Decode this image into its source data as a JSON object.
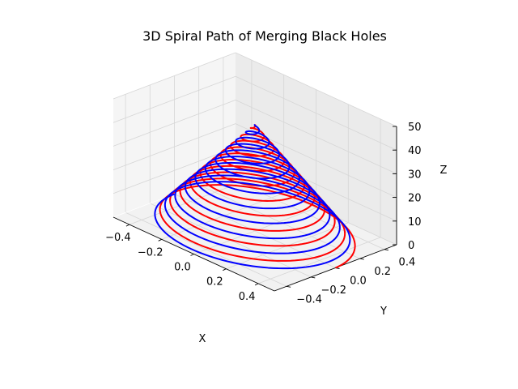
{
  "chart_data": {
    "type": "line3d",
    "title": "3D Spiral Path of Merging Black Holes",
    "xlabel": "X",
    "ylabel": "Y",
    "zlabel": "Z",
    "xlim": [
      -0.5,
      0.5
    ],
    "ylim": [
      -0.5,
      0.5
    ],
    "zlim": [
      0,
      50
    ],
    "xticks": [
      -0.4,
      -0.2,
      0.0,
      0.2,
      0.4
    ],
    "yticks": [
      -0.4,
      -0.2,
      0.0,
      0.2,
      0.4
    ],
    "zticks": [
      0,
      10,
      20,
      30,
      40,
      50
    ],
    "xtick_labels": [
      "−0.4",
      "−0.2",
      "0.0",
      "0.2",
      "0.4"
    ],
    "ytick_labels": [
      "−0.4",
      "−0.2",
      "0.0",
      "0.2",
      "0.4"
    ],
    "ztick_labels": [
      "0",
      "10",
      "20",
      "30",
      "40",
      "50"
    ],
    "grid": true,
    "view": {
      "elev": 30,
      "azim": -60
    },
    "series": [
      {
        "color": "#ff0000",
        "parametric": "x = r cos(t), y = r sin(t), z = 45 t / t_max, r decreasing",
        "radius_range": [
          0.5,
          0
        ],
        "turns": 10,
        "z_range": [
          0,
          45
        ],
        "phase_deg": 0
      },
      {
        "color": "#0000ff",
        "parametric": "x = -r cos(t), y = -r sin(t), z = 45 t / t_max, r decreasing",
        "radius_range": [
          0.5,
          0
        ],
        "turns": 10,
        "z_range": [
          0,
          45
        ],
        "phase_deg": 180
      }
    ]
  }
}
